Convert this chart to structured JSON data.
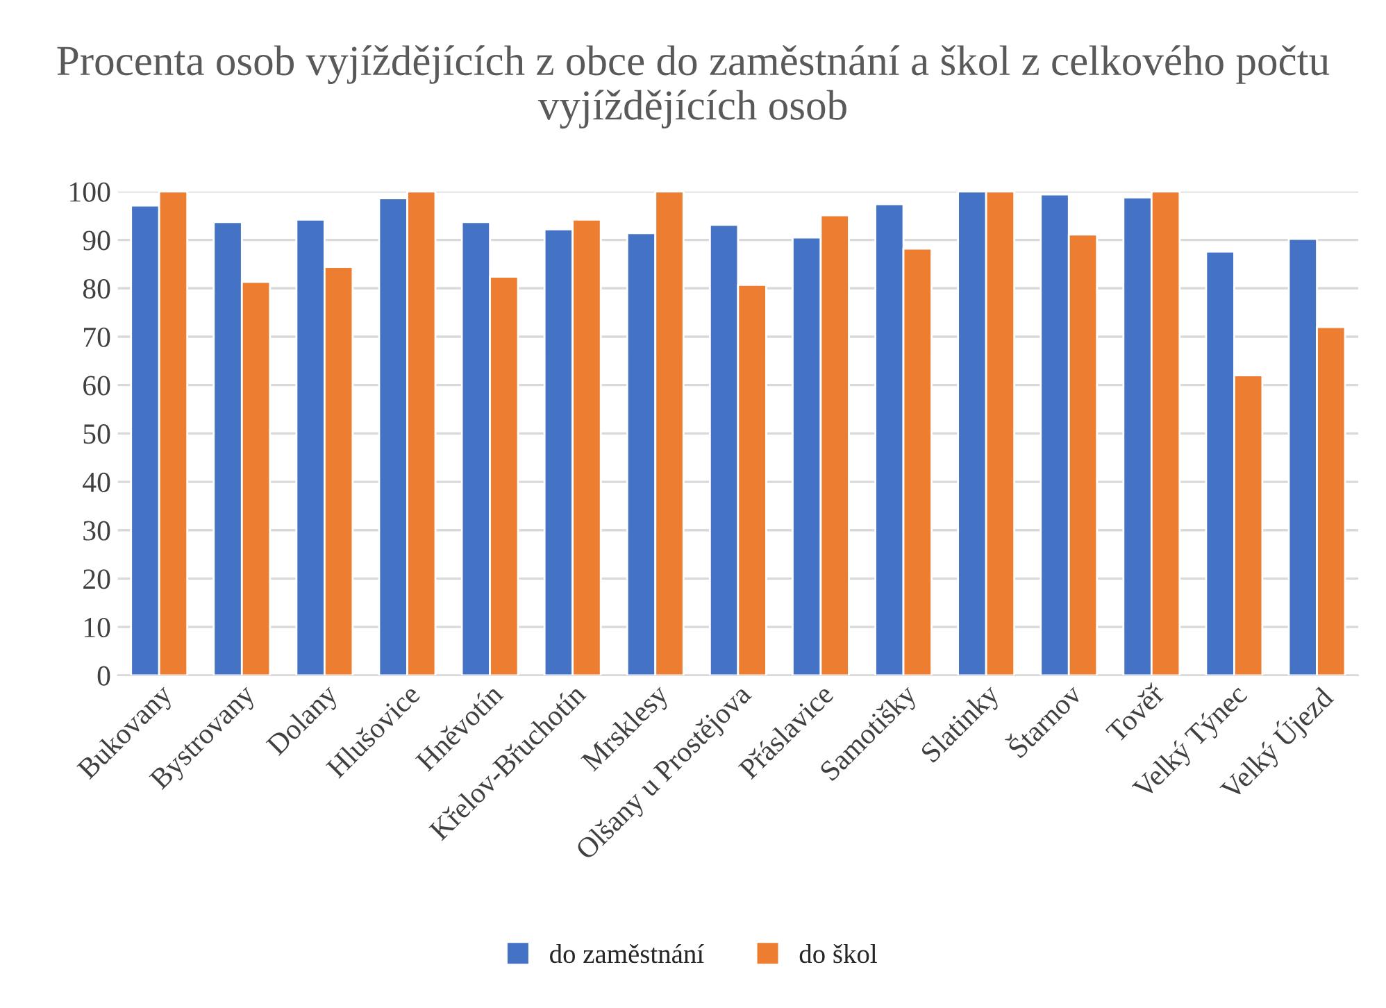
{
  "chart_data": {
    "type": "bar",
    "title": "Procenta osob vyjíždějících z obce do zaměstnání a škol z celkového počtu vyjíždějících osob",
    "categories": [
      "Bukovany",
      "Bystrovany",
      "Dolany",
      "Hlušovice",
      "Hněvotín",
      "Křelov-Břuchotín",
      "Mrsklesy",
      "Olšany u Prostějova",
      "Přáslavice",
      "Samotišky",
      "Slatinky",
      "Štarnov",
      "Tověř",
      "Velký Týnec",
      "Velký Újezd"
    ],
    "series": [
      {
        "name": "do zaměstnání",
        "color": "#4472c4",
        "values": [
          97.1,
          93.7,
          94.2,
          98.6,
          93.7,
          92.2,
          91.4,
          93.1,
          90.5,
          97.4,
          100,
          99.4,
          98.8,
          87.6,
          90.2
        ]
      },
      {
        "name": "do škol",
        "color": "#ed7d31",
        "values": [
          100,
          81.3,
          84.4,
          100,
          82.4,
          94.2,
          100,
          80.7,
          95.1,
          88.2,
          100,
          91.1,
          100,
          62.0,
          72.0
        ]
      }
    ],
    "ylim": [
      0,
      100
    ],
    "yticks": [
      0,
      10,
      20,
      30,
      40,
      50,
      60,
      70,
      80,
      90,
      100
    ],
    "grid": "y",
    "legend": "bottom"
  }
}
